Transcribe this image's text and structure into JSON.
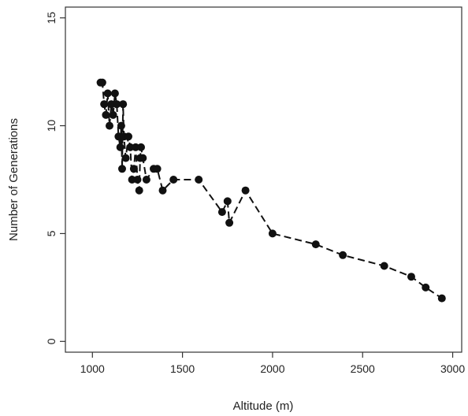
{
  "chart_data": {
    "type": "line",
    "title": "",
    "xlabel": "Altitude (m)",
    "ylabel": "Number of Generations",
    "xlim": [
      850,
      3050
    ],
    "ylim": [
      -0.5,
      15.5
    ],
    "x_ticks": [
      1000,
      1500,
      2000,
      2500,
      3000
    ],
    "y_ticks": [
      0,
      5,
      10,
      15
    ],
    "grid": false,
    "legend": "none",
    "line_style": "dashed",
    "marker": "filled-circle",
    "colors": {
      "marker": "#111111",
      "line": "#111111",
      "frame": "#333333"
    },
    "series": [
      {
        "x": [
          1045,
          1055,
          1065,
          1075,
          1085,
          1095,
          1105,
          1115,
          1125,
          1135,
          1145,
          1155,
          1160,
          1165,
          1170,
          1175,
          1185,
          1200,
          1210,
          1220,
          1230,
          1240,
          1250,
          1260,
          1265,
          1270,
          1280,
          1300,
          1340,
          1360,
          1390,
          1450,
          1590,
          1720,
          1750,
          1760,
          1850,
          2000,
          2240,
          2390,
          2620,
          2770,
          2850,
          2940
        ],
        "y": [
          12.0,
          12.0,
          11.0,
          10.5,
          11.5,
          10.0,
          11.0,
          10.5,
          11.5,
          11.0,
          9.5,
          9.0,
          10.0,
          8.0,
          11.0,
          9.5,
          8.5,
          9.5,
          9.0,
          7.5,
          8.0,
          9.0,
          7.5,
          7.0,
          8.5,
          9.0,
          8.5,
          7.5,
          8.0,
          8.0,
          7.0,
          7.5,
          7.5,
          6.0,
          6.5,
          5.5,
          7.0,
          5.0,
          4.5,
          4.0,
          3.5,
          3.0,
          2.5,
          2.0
        ]
      }
    ]
  }
}
